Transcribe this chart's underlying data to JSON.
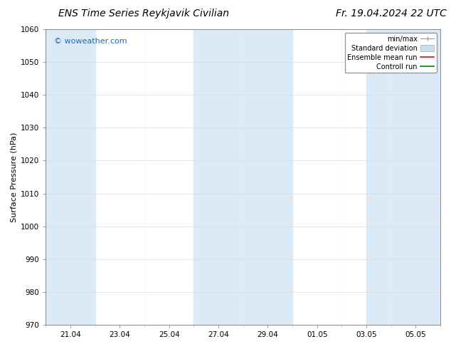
{
  "title_left": "ENS Time Series Reykjavik Civilian",
  "title_right": "Fr. 19.04.2024 22 UTC",
  "ylabel": "Surface Pressure (hPa)",
  "ylim": [
    970,
    1060
  ],
  "yticks": [
    970,
    980,
    990,
    1000,
    1010,
    1020,
    1030,
    1040,
    1050,
    1060
  ],
  "xtick_labels": [
    "21.04",
    "23.04",
    "25.04",
    "27.04",
    "29.04",
    "01.05",
    "03.05",
    "05.05"
  ],
  "xlim": [
    0,
    16
  ],
  "xtick_positions": [
    1,
    3,
    5,
    7,
    9,
    11,
    13,
    15
  ],
  "shaded_bands": [
    {
      "x_start": 0.0,
      "x_end": 2.0,
      "color": "#daeaf7"
    },
    {
      "x_start": 6.0,
      "x_end": 10.0,
      "color": "#daeaf7"
    },
    {
      "x_start": 13.0,
      "x_end": 16.0,
      "color": "#daeaf7"
    }
  ],
  "legend_entries": [
    {
      "label": "min/max",
      "color": "#aaaaaa",
      "type": "errorbar"
    },
    {
      "label": "Standard deviation",
      "color": "#c8dff0",
      "type": "fill"
    },
    {
      "label": "Ensemble mean run",
      "color": "#ff0000",
      "type": "line"
    },
    {
      "label": "Controll run",
      "color": "#008000",
      "type": "line"
    }
  ],
  "watermark_text": "© woweather.com",
  "watermark_color": "#1a6abf",
  "background_color": "#ffffff",
  "plot_bg_color": "#ffffff",
  "title_fontsize": 10,
  "axis_fontsize": 8,
  "tick_fontsize": 7.5,
  "legend_fontsize": 7,
  "fig_width": 6.34,
  "fig_height": 4.9
}
